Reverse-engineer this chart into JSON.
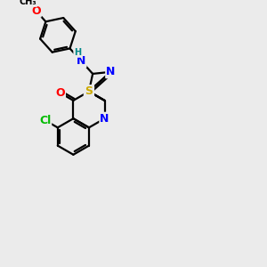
{
  "background_color": "#ebebeb",
  "bond_color": "#000000",
  "atom_colors": {
    "N": "#0000ff",
    "O": "#ff0000",
    "S": "#ccaa00",
    "Cl": "#00bb00",
    "H": "#008888",
    "C": "#000000"
  },
  "font_size": 9
}
